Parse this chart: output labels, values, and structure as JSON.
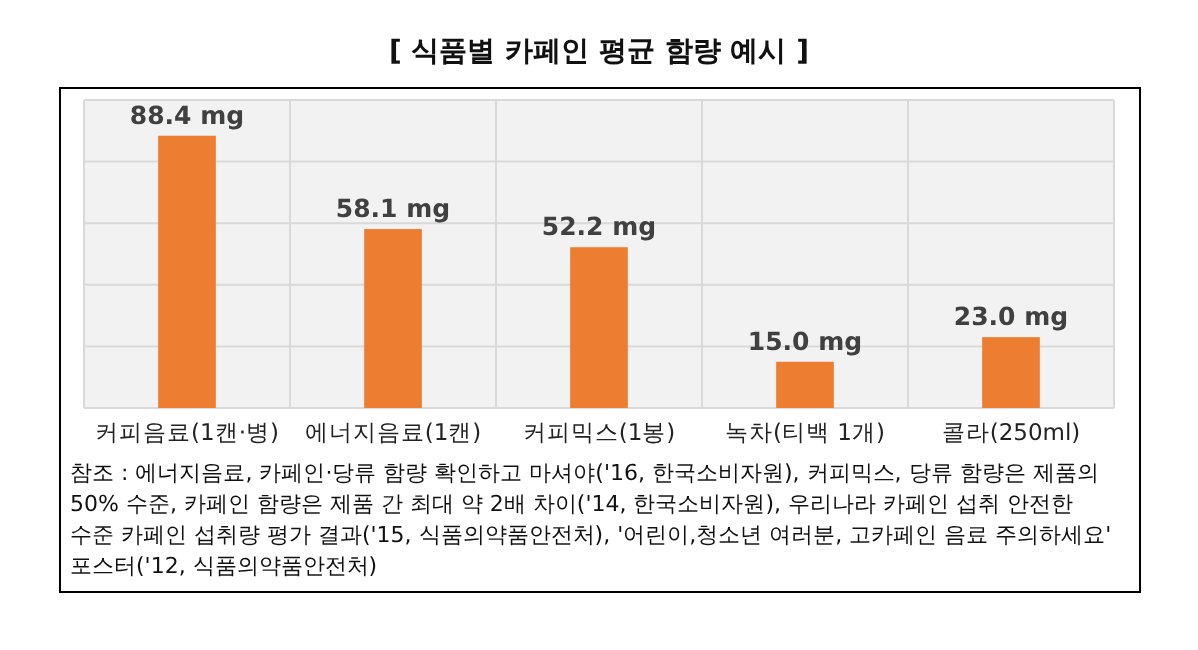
{
  "chart_data": {
    "type": "bar",
    "title": "[ 식품별 카페인 평균 함량 예시 ]",
    "categories": [
      "커피음료(1캔·병)",
      "에너지음료(1캔)",
      "커피믹스(1봉)",
      "녹차(티백 1개)",
      "콜라(250ml)"
    ],
    "values": [
      88.4,
      58.1,
      52.2,
      15.0,
      23.0
    ],
    "value_labels": [
      "88.4 mg",
      "58.1 mg",
      "52.2 mg",
      "15.0 mg",
      "23.0 mg"
    ],
    "color": "#ed7d31",
    "ylim": [
      0,
      100
    ],
    "yticks": [
      {
        "value": 0,
        "label": null
      },
      {
        "value": 20,
        "label": null
      },
      {
        "value": 40,
        "label": null
      },
      {
        "value": 60,
        "label": null
      },
      {
        "value": 80,
        "label": null
      },
      {
        "value": 100,
        "label": null
      }
    ],
    "tick_labels": "x",
    "grid": true,
    "annotations": [
      "참조 : 에너지음료, 카페인·당류 함량 확인하고 마셔야('16, 한국소비자원), 커피믹스, 당류 함량은 제품의 50% 수준, 카페인 함량은 제품 간 최대 약 2배 차이('14, 한국소비자원), 우리나라 카페인 섭취 안전한 수준 카페인 섭취량 평가 결과('15, 식품의약품안전처), '어린이,청소년 여러분, 고카페인 음료 주의하세요' 포스터('12, 식품의약품안전처)"
    ]
  }
}
